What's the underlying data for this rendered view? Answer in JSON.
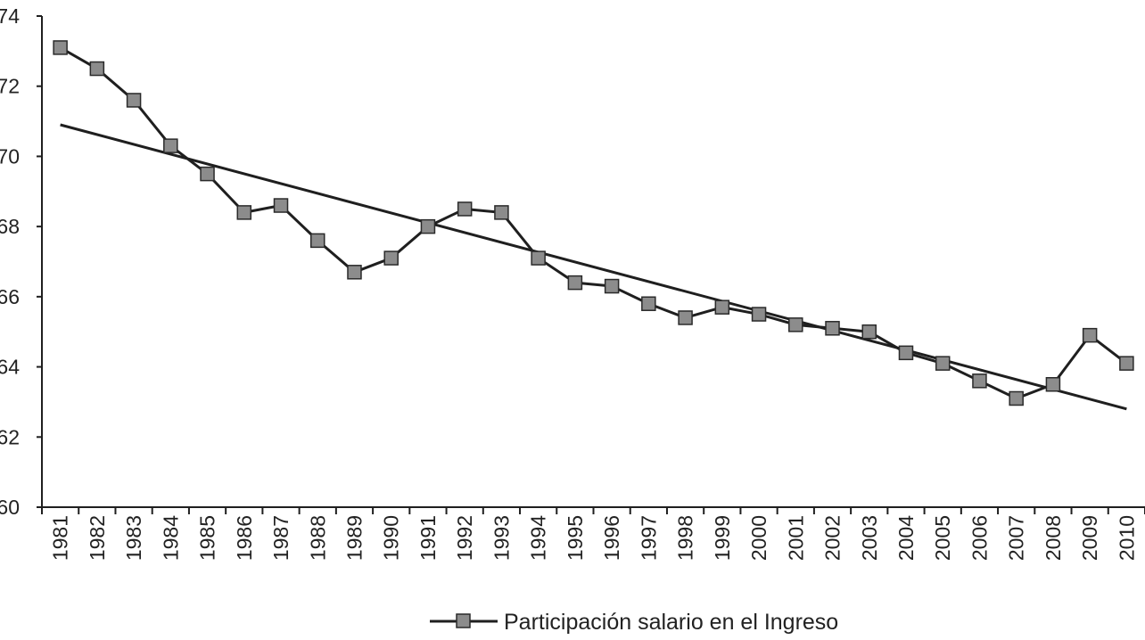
{
  "chart_data": {
    "type": "line",
    "x": [
      "1981",
      "1982",
      "1983",
      "1984",
      "1985",
      "1986",
      "1987",
      "1988",
      "1989",
      "1990",
      "1991",
      "1992",
      "1993",
      "1994",
      "1995",
      "1996",
      "1997",
      "1998",
      "1999",
      "2000",
      "2001",
      "2002",
      "2003",
      "2004",
      "2005",
      "2006",
      "2007",
      "2008",
      "2009",
      "2010"
    ],
    "series": [
      {
        "name": "Participación salario en el Ingreso",
        "values": [
          73.1,
          72.5,
          71.6,
          70.3,
          69.5,
          68.4,
          68.6,
          67.6,
          66.7,
          67.1,
          68.0,
          68.5,
          68.4,
          67.1,
          66.4,
          66.3,
          65.8,
          65.4,
          65.7,
          65.5,
          65.2,
          65.1,
          65.0,
          64.4,
          64.1,
          63.6,
          63.1,
          63.5,
          64.9,
          64.1
        ],
        "marker": "square",
        "line_color": "#1f1f1f",
        "marker_color": "#8c8c8c"
      }
    ],
    "trendline": {
      "type": "linear",
      "start": 70.9,
      "end": 62.8,
      "color": "#1f1f1f"
    },
    "yticks": [
      "60",
      "62",
      "64",
      "66",
      "68",
      "70",
      "72",
      "74"
    ],
    "ylim": [
      60,
      74
    ],
    "grid": false,
    "legend": "bottom-center",
    "title": "",
    "xlabel": "",
    "ylabel": ""
  }
}
